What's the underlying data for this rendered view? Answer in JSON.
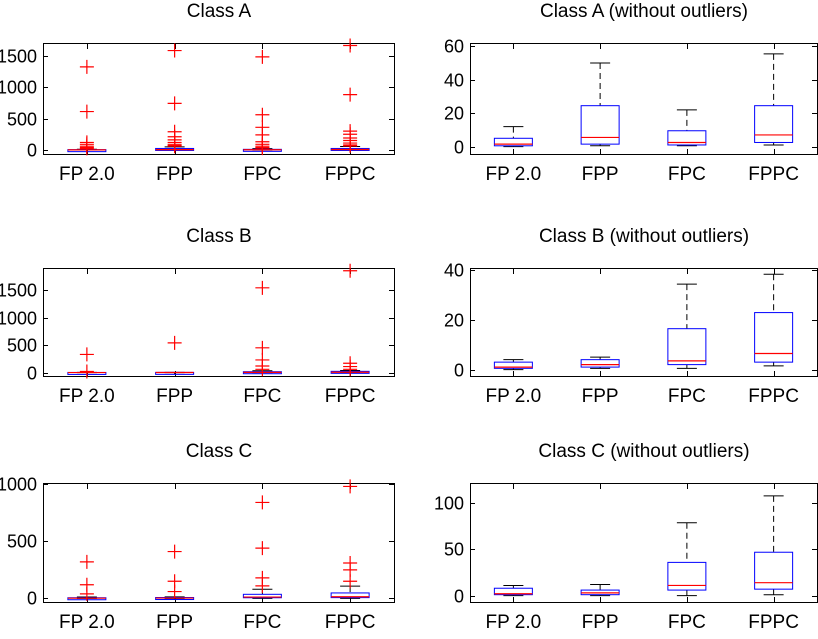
{
  "chart_data": [
    {
      "type": "box",
      "title": "Class A",
      "ylim": [
        -80,
        1700
      ],
      "yticks": [
        0,
        500,
        1000,
        1500
      ],
      "categories": [
        "FP 2.0",
        "FPP",
        "FPC",
        "FPPC"
      ],
      "boxes": [
        {
          "min": 0,
          "q1": 0,
          "median": 2,
          "q3": 5,
          "max": 12,
          "outliers": [
            1320,
            610,
            120,
            90,
            60,
            40,
            25
          ]
        },
        {
          "min": 0,
          "q1": 1,
          "median": 6,
          "q3": 24,
          "max": 50,
          "outliers": [
            1580,
            740,
            290,
            210,
            160,
            120,
            90,
            70,
            60
          ]
        },
        {
          "min": 0,
          "q1": 1,
          "median": 3,
          "q3": 10,
          "max": 22,
          "outliers": [
            1480,
            560,
            360,
            240,
            130,
            90,
            60,
            40,
            30
          ]
        },
        {
          "min": 1,
          "q1": 2,
          "median": 7,
          "q3": 24,
          "max": 55,
          "outliers": [
            1660,
            880,
            300,
            250,
            190,
            150,
            110,
            80,
            65
          ]
        }
      ]
    },
    {
      "type": "box",
      "title": "Class A (without outliers)",
      "ylim": [
        -5,
        62
      ],
      "yticks": [
        0,
        20,
        40,
        60
      ],
      "categories": [
        "FP 2.0",
        "FPP",
        "FPC",
        "FPPC"
      ],
      "boxes": [
        {
          "min": 0,
          "q1": 0.5,
          "median": 1.5,
          "q3": 5,
          "max": 12,
          "outliers": []
        },
        {
          "min": 0.5,
          "q1": 1.5,
          "median": 5.5,
          "q3": 24.5,
          "max": 50,
          "outliers": []
        },
        {
          "min": 0.5,
          "q1": 1,
          "median": 2.5,
          "q3": 9.5,
          "max": 22,
          "outliers": []
        },
        {
          "min": 1,
          "q1": 2.5,
          "median": 7,
          "q3": 24.5,
          "max": 55.5,
          "outliers": []
        }
      ]
    },
    {
      "type": "box",
      "title": "Class B",
      "ylim": [
        -80,
        1900
      ],
      "yticks": [
        0,
        500,
        1000,
        1500
      ],
      "categories": [
        "FP 2.0",
        "FPP",
        "FPC",
        "FPPC"
      ],
      "boxes": [
        {
          "min": 0,
          "q1": 0,
          "median": 1,
          "q3": 3,
          "max": 4,
          "outliers": [
            330,
            20
          ]
        },
        {
          "min": 0,
          "q1": 1,
          "median": 2,
          "q3": 4,
          "max": 5,
          "outliers": [
            540
          ]
        },
        {
          "min": 0,
          "q1": 2,
          "median": 4,
          "q3": 16,
          "max": 34,
          "outliers": [
            1540,
            450,
            230,
            120,
            60
          ]
        },
        {
          "min": 1,
          "q1": 3,
          "median": 6,
          "q3": 23,
          "max": 38,
          "outliers": [
            1850,
            170,
            110,
            60
          ]
        }
      ]
    },
    {
      "type": "box",
      "title": "Class B (without outliers)",
      "ylim": [
        -3,
        41
      ],
      "yticks": [
        0,
        20,
        40
      ],
      "categories": [
        "FP 2.0",
        "FPP",
        "FPC",
        "FPPC"
      ],
      "boxes": [
        {
          "min": 0,
          "q1": 0.5,
          "median": 1,
          "q3": 3,
          "max": 4,
          "outliers": []
        },
        {
          "min": 0.5,
          "q1": 1,
          "median": 2,
          "q3": 4,
          "max": 5,
          "outliers": []
        },
        {
          "min": 0.5,
          "q1": 2,
          "median": 3.5,
          "q3": 16.5,
          "max": 34.5,
          "outliers": []
        },
        {
          "min": 1.5,
          "q1": 3,
          "median": 6.5,
          "q3": 23,
          "max": 38.5,
          "outliers": []
        }
      ]
    },
    {
      "type": "box",
      "title": "Class C",
      "ylim": [
        -40,
        1010
      ],
      "yticks": [
        0,
        500,
        1000
      ],
      "categories": [
        "FP 2.0",
        "FPP",
        "FPC",
        "FPPC"
      ],
      "boxes": [
        {
          "min": 0,
          "q1": 0,
          "median": 2,
          "q3": 6,
          "max": 12,
          "outliers": [
            320,
            120,
            40
          ]
        },
        {
          "min": 0,
          "q1": 1,
          "median": 3,
          "q3": 8,
          "max": 14,
          "outliers": [
            410,
            150,
            60
          ]
        },
        {
          "min": 0,
          "q1": 6,
          "median": 12,
          "q3": 36,
          "max": 80,
          "outliers": [
            840,
            440,
            180,
            110
          ]
        },
        {
          "min": 1,
          "q1": 7,
          "median": 15,
          "q3": 48,
          "max": 108,
          "outliers": [
            980,
            310,
            250,
            150
          ]
        }
      ]
    },
    {
      "type": "box",
      "title": "Class C (without outliers)",
      "ylim": [
        -8,
        122
      ],
      "yticks": [
        0,
        50,
        100
      ],
      "categories": [
        "FP 2.0",
        "FPP",
        "FPC",
        "FPPC"
      ],
      "boxes": [
        {
          "min": 0,
          "q1": 1,
          "median": 2,
          "q3": 8,
          "max": 11,
          "outliers": []
        },
        {
          "min": 0,
          "q1": 1,
          "median": 3,
          "q3": 6,
          "max": 12,
          "outliers": []
        },
        {
          "min": 0,
          "q1": 6,
          "median": 11,
          "q3": 36,
          "max": 79,
          "outliers": []
        },
        {
          "min": 1,
          "q1": 7,
          "median": 14,
          "q3": 47,
          "max": 108,
          "outliers": []
        }
      ]
    }
  ]
}
